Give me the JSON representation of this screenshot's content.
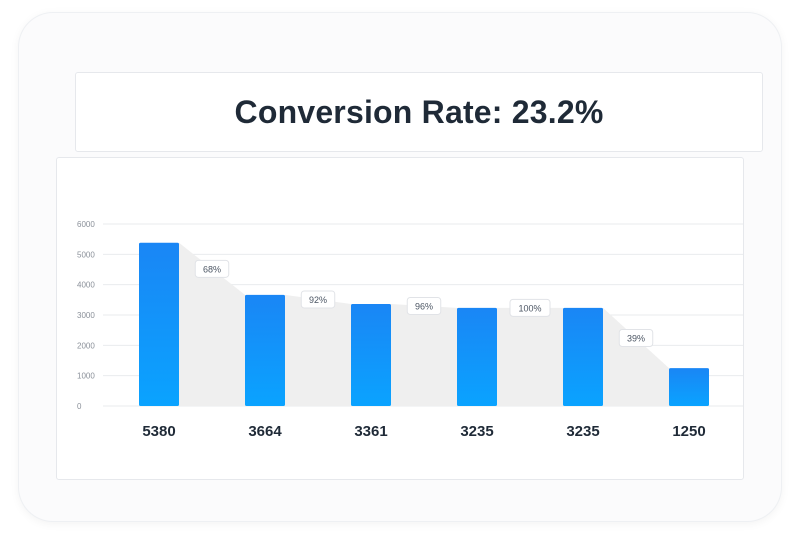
{
  "title": "Conversion Rate: 23.2%",
  "chart_data": {
    "type": "bar",
    "subtype": "funnel",
    "values": [
      5380,
      3664,
      3361,
      3235,
      3235,
      1250
    ],
    "value_labels": [
      "5380",
      "3664",
      "3361",
      "3235",
      "3235",
      "1250"
    ],
    "conversion_labels": [
      "68%",
      "92%",
      "96%",
      "100%",
      "39%"
    ],
    "y_ticks": [
      "0",
      "1000",
      "2000",
      "3000",
      "4000",
      "5000",
      "6000"
    ],
    "ylim": [
      0,
      6000
    ],
    "grid": true,
    "colors": {
      "bar_top": "#1a86f5",
      "bar_bottom": "#0aa3ff",
      "funnel_fill": "#efefef",
      "grid": "#e9ebee",
      "tick_text": "#8a9099",
      "value_text": "#1f2a37"
    }
  }
}
